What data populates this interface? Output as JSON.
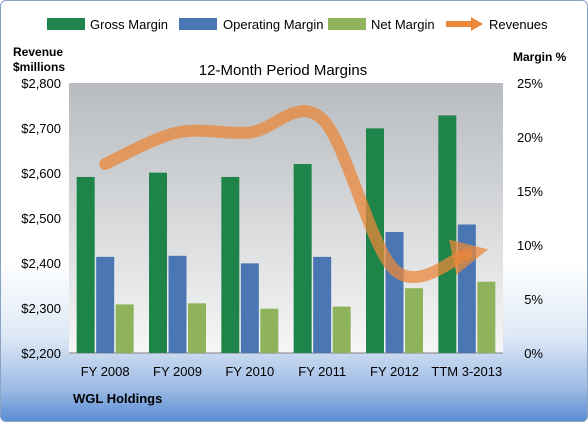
{
  "chart_data": {
    "type": "bar",
    "title": "12-Month Period Margins",
    "company": "WGL Holdings",
    "categories": [
      "FY 2008",
      "FY 2009",
      "FY 2010",
      "FY 2011",
      "FY 2012",
      "TTM 3-2013"
    ],
    "left_axis": {
      "label_line1": "Revenue",
      "label_line2": "$millions",
      "ticks": [
        "$2,200",
        "$2,300",
        "$2,400",
        "$2,500",
        "$2,600",
        "$2,700",
        "$2,800"
      ],
      "range": [
        2200,
        2800
      ]
    },
    "right_axis": {
      "label": "Margin %",
      "ticks": [
        "0%",
        "5%",
        "10%",
        "15%",
        "20%",
        "25%"
      ],
      "range": [
        0,
        25
      ]
    },
    "series": [
      {
        "name": "Gross Margin",
        "axis": "right",
        "kind": "bar",
        "color": "#1e8449",
        "values": [
          16.3,
          16.7,
          16.3,
          17.5,
          20.8,
          22.0
        ]
      },
      {
        "name": "Operating Margin",
        "axis": "right",
        "kind": "bar",
        "color": "#4a77b4",
        "values": [
          8.9,
          9.0,
          8.3,
          8.9,
          11.2,
          11.9
        ]
      },
      {
        "name": "Net Margin",
        "axis": "right",
        "kind": "bar",
        "color": "#8fb35a",
        "values": [
          4.5,
          4.6,
          4.1,
          4.3,
          6.0,
          6.6
        ]
      },
      {
        "name": "Revenues",
        "axis": "left",
        "kind": "line",
        "color": "#e9873a",
        "values": [
          2620,
          2690,
          2690,
          2720,
          2385,
          2420
        ]
      }
    ],
    "legend_position": "top",
    "grid": false
  }
}
